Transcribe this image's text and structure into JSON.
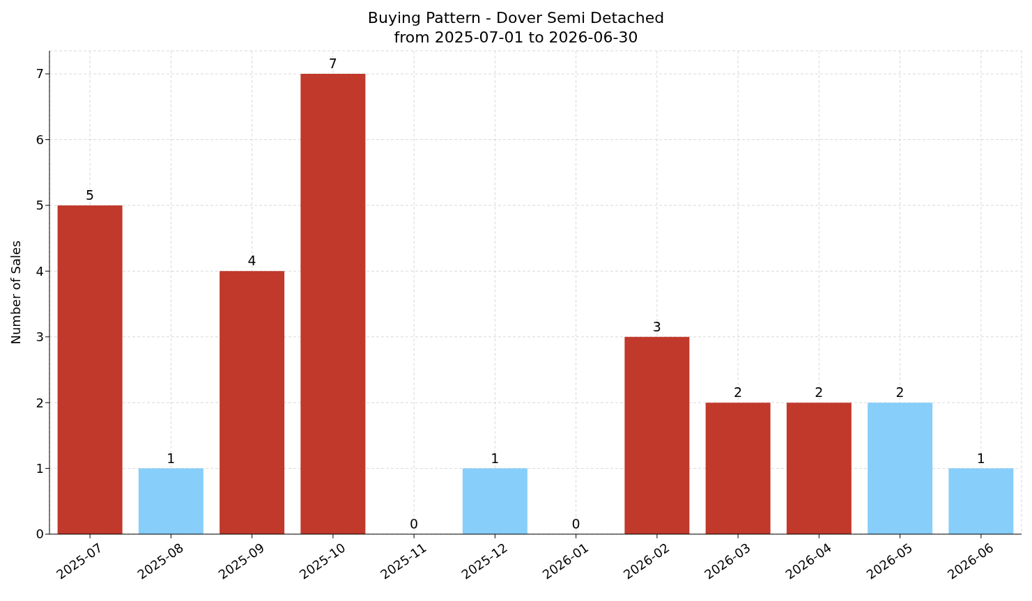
{
  "chart_data": {
    "type": "bar",
    "title": "Buying Pattern - Dover Semi Detached",
    "subtitle": "from 2025-07-01 to 2026-06-30",
    "ylabel": "Number of Sales",
    "categories": [
      "2025-07",
      "2025-08",
      "2025-09",
      "2025-10",
      "2025-11",
      "2025-12",
      "2026-01",
      "2026-02",
      "2026-03",
      "2026-04",
      "2026-05",
      "2026-06"
    ],
    "values": [
      5,
      1,
      4,
      7,
      0,
      1,
      0,
      3,
      2,
      2,
      2,
      1
    ],
    "colors": [
      "#c0392b",
      "#87cefa",
      "#c0392b",
      "#c0392b",
      "#c0392b",
      "#87cefa",
      "#c0392b",
      "#c0392b",
      "#c0392b",
      "#c0392b",
      "#87cefa",
      "#87cefa"
    ],
    "ylim": [
      0,
      7.35
    ],
    "yticks": [
      0,
      1,
      2,
      3,
      4,
      5,
      6,
      7
    ],
    "grid": true,
    "data_labels": true
  }
}
